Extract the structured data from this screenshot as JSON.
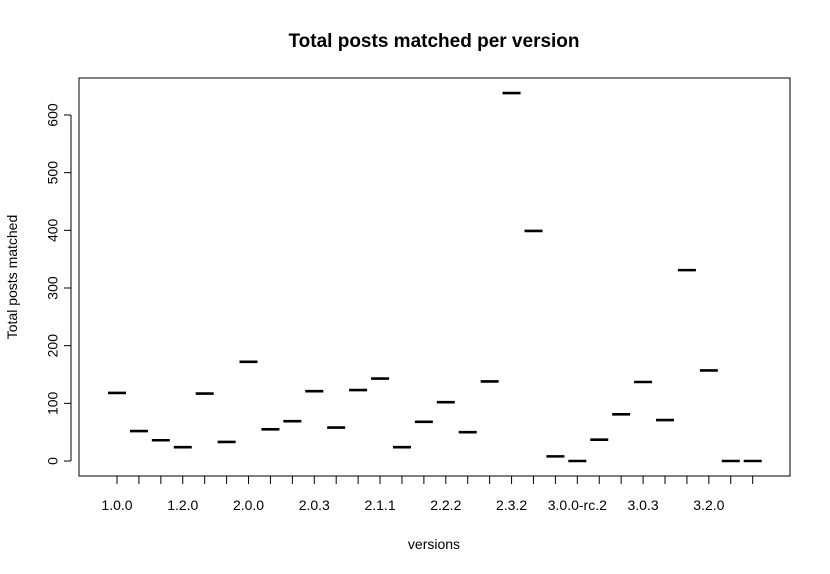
{
  "chart_data": {
    "type": "boxplot",
    "title": "Total posts matched per version",
    "xlabel": "versions",
    "ylabel": "Total posts matched",
    "ylim": [
      -25,
      665
    ],
    "yticks": [
      0,
      100,
      200,
      300,
      400,
      500,
      600
    ],
    "categories": [
      "1.0.0",
      "",
      "",
      "1.2.0",
      "",
      "",
      "2.0.0",
      "",
      "",
      "2.0.3",
      "",
      "",
      "2.1.1",
      "",
      "",
      "2.2.2",
      "",
      "",
      "2.3.2",
      "",
      "",
      "3.0.0-rc.2",
      "",
      "",
      "3.0.3",
      "",
      "",
      "3.2.0",
      "",
      ""
    ],
    "values": [
      118,
      52,
      36,
      24,
      117,
      33,
      172,
      55,
      69,
      121,
      58,
      123,
      143,
      24,
      68,
      102,
      50,
      138,
      638,
      399,
      8,
      0,
      37,
      81,
      137,
      71,
      331,
      157,
      0,
      0
    ],
    "grid": false,
    "legend": "none"
  }
}
